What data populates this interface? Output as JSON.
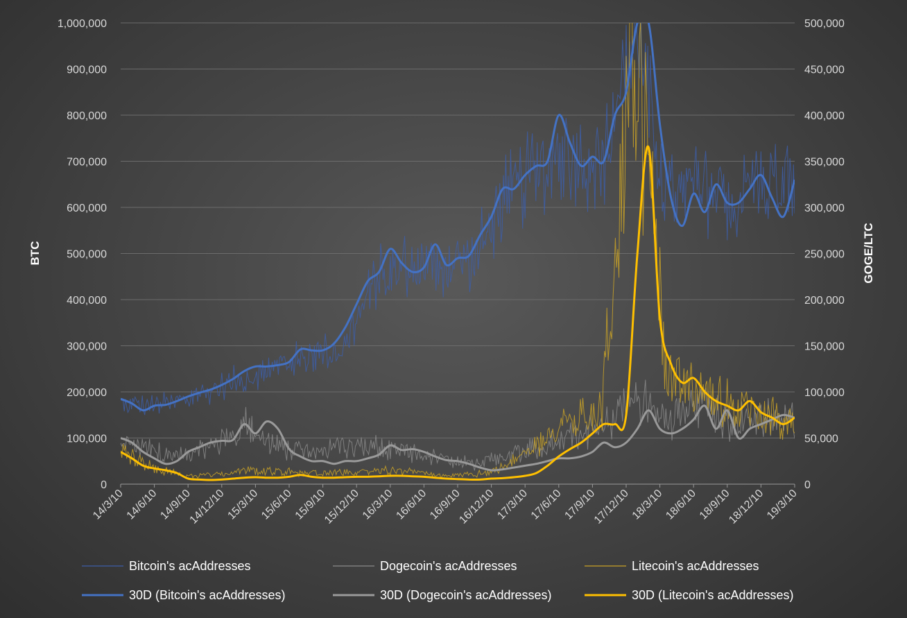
{
  "chart_data": {
    "type": "line",
    "title": "",
    "x_ticks": [
      "14/3/10",
      "14/6/10",
      "14/9/10",
      "14/12/10",
      "15/3/10",
      "15/6/10",
      "15/9/10",
      "15/12/10",
      "16/3/10",
      "16/6/10",
      "16/9/10",
      "16/12/10",
      "17/3/10",
      "17/6/10",
      "17/9/10",
      "17/12/10",
      "18/3/10",
      "18/6/10",
      "18/9/10",
      "18/12/10",
      "19/3/10"
    ],
    "y_left": {
      "label": "BTC",
      "min": 0,
      "max": 1000000,
      "ticks": [
        "0",
        "100,000",
        "200,000",
        "300,000",
        "400,000",
        "500,000",
        "600,000",
        "700,000",
        "800,000",
        "900,000",
        "1,000,000"
      ]
    },
    "y_right": {
      "label": "GOGE/LTC",
      "min": 0,
      "max": 500000,
      "ticks": [
        "0",
        "50,000",
        "100,000",
        "150,000",
        "200,000",
        "250,000",
        "300,000",
        "350,000",
        "400,000",
        "450,000",
        "500,000"
      ]
    },
    "grid": true,
    "legend_position": "bottom",
    "series": [
      {
        "name": "Bitcoin's acAddresses",
        "axis": "left",
        "color": "#3d5ea8",
        "style": "raw",
        "values": [
          175000,
          170000,
          180000,
          210000,
          235000,
          260000,
          280000,
          300000,
          450000,
          480000,
          470000,
          490000,
          620000,
          680000,
          720000,
          680000,
          1000000,
          620000,
          640000,
          610000,
          660000,
          650000
        ]
      },
      {
        "name": "Dogecoin's acAddresses",
        "axis": "right",
        "color": "#8a8a8a",
        "style": "raw",
        "values": [
          50000,
          35000,
          30000,
          45000,
          65000,
          40000,
          35000,
          40000,
          42000,
          35000,
          28000,
          22000,
          30000,
          40000,
          50000,
          60000,
          95000,
          70000,
          85000,
          65000,
          75000,
          70000
        ]
      },
      {
        "name": "Litecoin's acAddresses",
        "axis": "right",
        "color": "#c9a227",
        "style": "raw",
        "values": [
          35000,
          18000,
          9000,
          10000,
          15000,
          14000,
          12000,
          12000,
          15000,
          13000,
          9000,
          10000,
          18000,
          45000,
          65000,
          80000,
          500000,
          120000,
          100000,
          85000,
          75000,
          70000
        ]
      },
      {
        "name": "30D (Bitcoin's acAddresses)",
        "axis": "left",
        "color": "#4472c4",
        "style": "avg",
        "points": [
          [
            "14/3/10",
            185000
          ],
          [
            "14/4/10",
            175000
          ],
          [
            "14/5/10",
            160000
          ],
          [
            "14/6/10",
            170000
          ],
          [
            "14/7/10",
            172000
          ],
          [
            "14/8/10",
            180000
          ],
          [
            "14/9/10",
            190000
          ],
          [
            "14/10/10",
            198000
          ],
          [
            "14/11/10",
            205000
          ],
          [
            "14/12/10",
            215000
          ],
          [
            "15/1/10",
            228000
          ],
          [
            "15/2/10",
            245000
          ],
          [
            "15/3/10",
            255000
          ],
          [
            "15/4/10",
            255000
          ],
          [
            "15/5/10",
            258000
          ],
          [
            "15/6/10",
            265000
          ],
          [
            "15/7/10",
            292000
          ],
          [
            "15/8/10",
            290000
          ],
          [
            "15/9/10",
            290000
          ],
          [
            "15/10/10",
            305000
          ],
          [
            "15/11/10",
            340000
          ],
          [
            "15/12/10",
            390000
          ],
          [
            "16/1/10",
            440000
          ],
          [
            "16/2/10",
            460000
          ],
          [
            "16/3/10",
            510000
          ],
          [
            "16/4/10",
            480000
          ],
          [
            "16/5/10",
            460000
          ],
          [
            "16/6/10",
            470000
          ],
          [
            "16/7/10",
            520000
          ],
          [
            "16/8/10",
            475000
          ],
          [
            "16/9/10",
            490000
          ],
          [
            "16/10/10",
            495000
          ],
          [
            "16/11/10",
            540000
          ],
          [
            "16/12/10",
            580000
          ],
          [
            "17/1/10",
            640000
          ],
          [
            "17/2/10",
            640000
          ],
          [
            "17/3/10",
            670000
          ],
          [
            "17/4/10",
            690000
          ],
          [
            "17/5/10",
            700000
          ],
          [
            "17/6/10",
            800000
          ],
          [
            "17/7/10",
            740000
          ],
          [
            "17/8/10",
            690000
          ],
          [
            "17/9/10",
            710000
          ],
          [
            "17/10/10",
            700000
          ],
          [
            "17/11/10",
            800000
          ],
          [
            "17/12/10",
            850000
          ],
          [
            "18/1/10",
            1000000
          ],
          [
            "18/2/10",
            1000000
          ],
          [
            "18/3/10",
            780000
          ],
          [
            "18/4/10",
            620000
          ],
          [
            "18/5/10",
            560000
          ],
          [
            "18/6/10",
            630000
          ],
          [
            "18/7/10",
            590000
          ],
          [
            "18/8/10",
            650000
          ],
          [
            "18/9/10",
            610000
          ],
          [
            "18/10/10",
            610000
          ],
          [
            "18/11/10",
            640000
          ],
          [
            "18/12/10",
            670000
          ],
          [
            "19/1/10",
            620000
          ],
          [
            "19/2/10",
            580000
          ],
          [
            "19/3/10",
            660000
          ]
        ]
      },
      {
        "name": "30D (Dogecoin's acAddresses)",
        "axis": "right",
        "color": "#9a9a9a",
        "style": "avg",
        "points": [
          [
            "14/3/10",
            50000
          ],
          [
            "14/4/10",
            45000
          ],
          [
            "14/5/10",
            35000
          ],
          [
            "14/6/10",
            28000
          ],
          [
            "14/7/10",
            22000
          ],
          [
            "14/8/10",
            25000
          ],
          [
            "14/9/10",
            35000
          ],
          [
            "14/10/10",
            40000
          ],
          [
            "14/11/10",
            45000
          ],
          [
            "14/12/10",
            47000
          ],
          [
            "15/1/10",
            48000
          ],
          [
            "15/2/10",
            65000
          ],
          [
            "15/3/10",
            55000
          ],
          [
            "15/4/10",
            68000
          ],
          [
            "15/5/10",
            60000
          ],
          [
            "15/6/10",
            38000
          ],
          [
            "15/7/10",
            30000
          ],
          [
            "15/8/10",
            25000
          ],
          [
            "15/9/10",
            25000
          ],
          [
            "15/10/10",
            22000
          ],
          [
            "15/11/10",
            25000
          ],
          [
            "15/12/10",
            25000
          ],
          [
            "16/1/10",
            28000
          ],
          [
            "16/2/10",
            32000
          ],
          [
            "16/3/10",
            42000
          ],
          [
            "16/4/10",
            37000
          ],
          [
            "16/5/10",
            38000
          ],
          [
            "16/6/10",
            35000
          ],
          [
            "16/7/10",
            30000
          ],
          [
            "16/8/10",
            26000
          ],
          [
            "16/9/10",
            25000
          ],
          [
            "16/10/10",
            22000
          ],
          [
            "16/11/10",
            18000
          ],
          [
            "16/12/10",
            15000
          ],
          [
            "17/1/10",
            16000
          ],
          [
            "17/2/10",
            18000
          ],
          [
            "17/3/10",
            20000
          ],
          [
            "17/4/10",
            22000
          ],
          [
            "17/5/10",
            25000
          ],
          [
            "17/6/10",
            28000
          ],
          [
            "17/7/10",
            28000
          ],
          [
            "17/8/10",
            30000
          ],
          [
            "17/9/10",
            35000
          ],
          [
            "17/10/10",
            45000
          ],
          [
            "17/11/10",
            40000
          ],
          [
            "17/12/10",
            45000
          ],
          [
            "18/1/10",
            60000
          ],
          [
            "18/2/10",
            80000
          ],
          [
            "18/3/10",
            60000
          ],
          [
            "18/4/10",
            55000
          ],
          [
            "18/5/10",
            60000
          ],
          [
            "18/6/10",
            70000
          ],
          [
            "18/7/10",
            85000
          ],
          [
            "18/8/10",
            60000
          ],
          [
            "18/9/10",
            80000
          ],
          [
            "18/10/10",
            50000
          ],
          [
            "18/11/10",
            60000
          ],
          [
            "18/12/10",
            65000
          ],
          [
            "19/1/10",
            70000
          ],
          [
            "19/2/10",
            75000
          ],
          [
            "19/3/10",
            72000
          ]
        ]
      },
      {
        "name": "30D (Litecoin's acAddresses)",
        "axis": "right",
        "color": "#ffc000",
        "style": "avg",
        "points": [
          [
            "14/3/10",
            35000
          ],
          [
            "14/4/10",
            28000
          ],
          [
            "14/5/10",
            20000
          ],
          [
            "14/6/10",
            17000
          ],
          [
            "14/7/10",
            15000
          ],
          [
            "14/8/10",
            12000
          ],
          [
            "14/9/10",
            6000
          ],
          [
            "14/10/10",
            5000
          ],
          [
            "14/11/10",
            4500
          ],
          [
            "14/12/10",
            5000
          ],
          [
            "15/1/10",
            6000
          ],
          [
            "15/2/10",
            7000
          ],
          [
            "15/3/10",
            7500
          ],
          [
            "15/4/10",
            7000
          ],
          [
            "15/5/10",
            7000
          ],
          [
            "15/6/10",
            8000
          ],
          [
            "15/7/10",
            10000
          ],
          [
            "15/8/10",
            8000
          ],
          [
            "15/9/10",
            7000
          ],
          [
            "15/10/10",
            7000
          ],
          [
            "15/11/10",
            7500
          ],
          [
            "15/12/10",
            8000
          ],
          [
            "16/1/10",
            8000
          ],
          [
            "16/2/10",
            8500
          ],
          [
            "16/3/10",
            9000
          ],
          [
            "16/4/10",
            9000
          ],
          [
            "16/5/10",
            8500
          ],
          [
            "16/6/10",
            8000
          ],
          [
            "16/7/10",
            7000
          ],
          [
            "16/8/10",
            6000
          ],
          [
            "16/9/10",
            5500
          ],
          [
            "16/10/10",
            5000
          ],
          [
            "16/11/10",
            5000
          ],
          [
            "16/12/10",
            6000
          ],
          [
            "17/1/10",
            6500
          ],
          [
            "17/2/10",
            7500
          ],
          [
            "17/3/10",
            9000
          ],
          [
            "17/4/10",
            12000
          ],
          [
            "17/5/10",
            20000
          ],
          [
            "17/6/10",
            30000
          ],
          [
            "17/7/10",
            38000
          ],
          [
            "17/8/10",
            45000
          ],
          [
            "17/9/10",
            55000
          ],
          [
            "17/10/10",
            65000
          ],
          [
            "17/11/10",
            65000
          ],
          [
            "17/12/10",
            75000
          ],
          [
            "18/1/10",
            250000
          ],
          [
            "18/2/10",
            365000
          ],
          [
            "18/3/10",
            180000
          ],
          [
            "18/4/10",
            130000
          ],
          [
            "18/5/10",
            110000
          ],
          [
            "18/6/10",
            115000
          ],
          [
            "18/7/10",
            100000
          ],
          [
            "18/8/10",
            90000
          ],
          [
            "18/9/10",
            85000
          ],
          [
            "18/10/10",
            80000
          ],
          [
            "18/11/10",
            90000
          ],
          [
            "18/12/10",
            78000
          ],
          [
            "19/1/10",
            72000
          ],
          [
            "19/2/10",
            65000
          ],
          [
            "19/3/10",
            72000
          ]
        ]
      }
    ]
  }
}
